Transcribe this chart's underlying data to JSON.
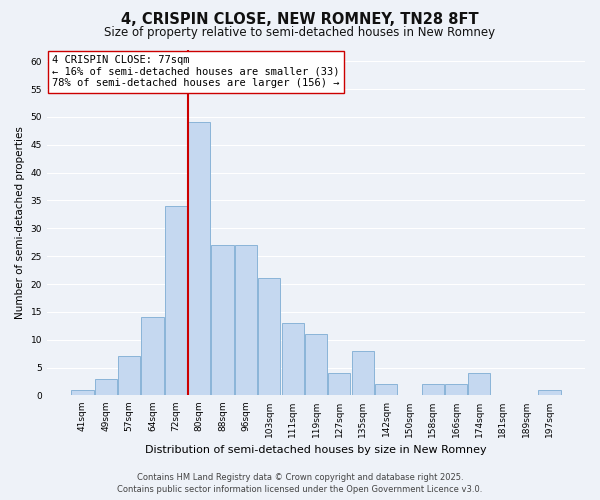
{
  "title": "4, CRISPIN CLOSE, NEW ROMNEY, TN28 8FT",
  "subtitle": "Size of property relative to semi-detached houses in New Romney",
  "xlabel": "Distribution of semi-detached houses by size in New Romney",
  "ylabel": "Number of semi-detached properties",
  "bar_labels": [
    "41sqm",
    "49sqm",
    "57sqm",
    "64sqm",
    "72sqm",
    "80sqm",
    "88sqm",
    "96sqm",
    "103sqm",
    "111sqm",
    "119sqm",
    "127sqm",
    "135sqm",
    "142sqm",
    "150sqm",
    "158sqm",
    "166sqm",
    "174sqm",
    "181sqm",
    "189sqm",
    "197sqm"
  ],
  "bar_values": [
    1,
    3,
    7,
    14,
    34,
    49,
    27,
    27,
    21,
    13,
    11,
    4,
    8,
    2,
    0,
    2,
    2,
    4,
    0,
    0,
    1
  ],
  "bar_color": "#c5d8f0",
  "bar_edge_color": "#8ab4d8",
  "vline_color": "#cc0000",
  "vline_x_index": 5,
  "annotation_title": "4 CRISPIN CLOSE: 77sqm",
  "annotation_line1": "← 16% of semi-detached houses are smaller (33)",
  "annotation_line2": "78% of semi-detached houses are larger (156) →",
  "annotation_box_facecolor": "#ffffff",
  "annotation_box_edgecolor": "#cc0000",
  "ylim": [
    0,
    62
  ],
  "yticks": [
    0,
    5,
    10,
    15,
    20,
    25,
    30,
    35,
    40,
    45,
    50,
    55,
    60
  ],
  "bg_color": "#eef2f8",
  "grid_color": "#ffffff",
  "footer_line1": "Contains HM Land Registry data © Crown copyright and database right 2025.",
  "footer_line2": "Contains public sector information licensed under the Open Government Licence v3.0.",
  "title_fontsize": 10.5,
  "subtitle_fontsize": 8.5,
  "ylabel_fontsize": 7.5,
  "xlabel_fontsize": 8,
  "tick_fontsize": 6.5,
  "annotation_fontsize": 7.5,
  "footer_fontsize": 6
}
